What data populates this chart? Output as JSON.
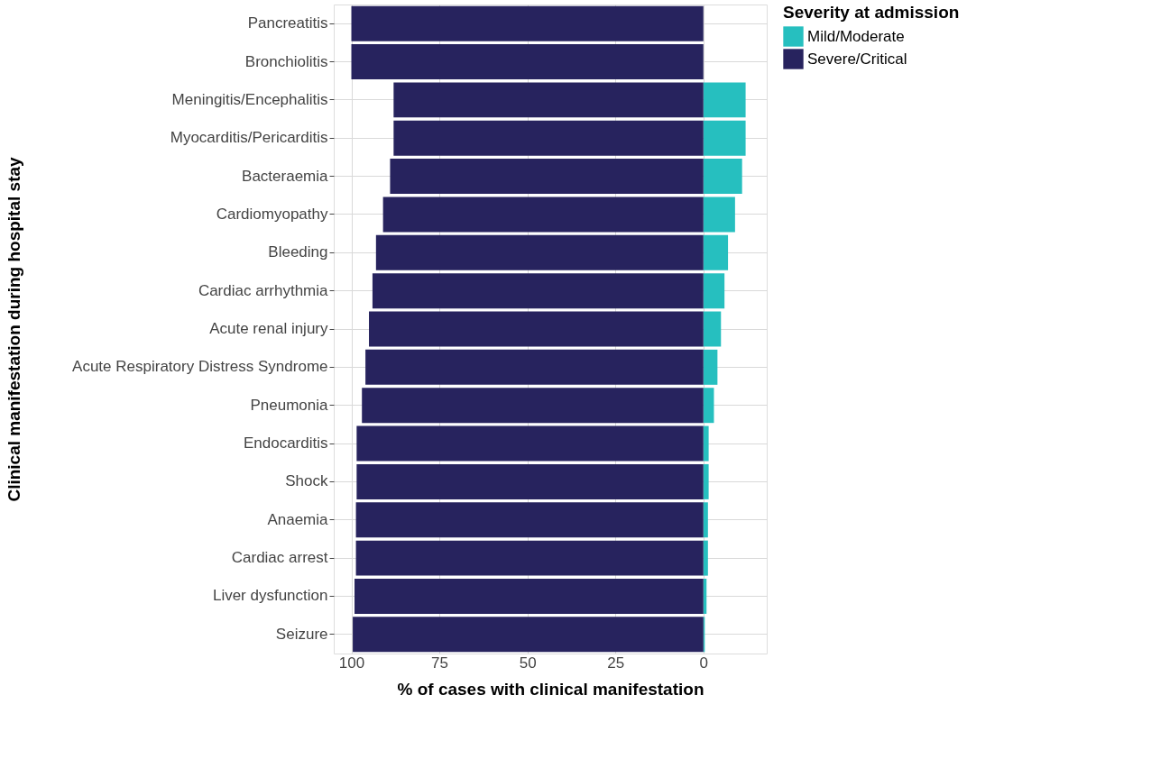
{
  "chart_data": {
    "type": "bar",
    "orientation": "horizontal",
    "xlabel": "% of cases with clinical manifestation",
    "ylabel": "Clinical manifestation during hospital stay",
    "legend_title": "Severity at admission",
    "legend": "right",
    "grid": true,
    "stacked": true,
    "categories": [
      "Pancreatitis",
      "Bronchiolitis",
      "Meningitis/Encephalitis",
      "Myocarditis/Pericarditis",
      "Bacteraemia",
      "Cardiomyopathy",
      "Bleeding",
      "Cardiac arrhythmia",
      "Acute renal injury",
      "Acute Respiratory Distress Syndrome",
      "Pneumonia",
      "Endocarditis",
      "Shock",
      "Anaemia",
      "Cardiac arrest",
      "Liver dysfunction",
      "Seizure"
    ],
    "series": [
      {
        "name": "Mild/Moderate",
        "color": "#26bfbf",
        "values": [
          0,
          0,
          -12,
          -12,
          -11,
          -9,
          -7,
          -6,
          -5,
          -4,
          -3,
          -1.5,
          -1.5,
          -1.3,
          -1.3,
          -0.9,
          -0.4
        ]
      },
      {
        "name": "Severe/Critical",
        "color": "#27235e",
        "values": [
          100,
          100,
          88,
          88,
          89,
          91,
          93,
          94,
          95,
          96,
          97,
          98.5,
          98.5,
          98.7,
          98.7,
          99.1,
          99.6
        ]
      }
    ],
    "xlim": [
      105,
      -18
    ],
    "xticks": [
      100,
      75,
      50,
      25,
      0
    ]
  }
}
